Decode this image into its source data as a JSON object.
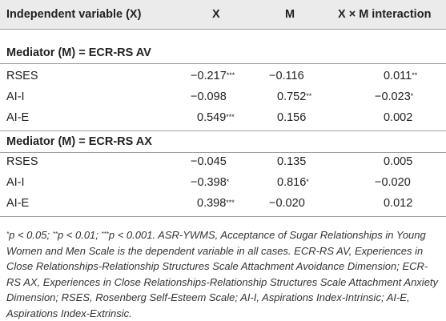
{
  "header": {
    "col_var": "Independent variable (X)",
    "col_x": "X",
    "col_m": "M",
    "col_xm": "X × M interaction"
  },
  "sections": [
    {
      "title": "Mediator (M) = ECR-RS AV",
      "rows": [
        {
          "label": "RSES",
          "x": "−0.217",
          "x_sig": "***",
          "m": "−0.116",
          "m_sig": "",
          "xm": "0.011",
          "xm_sig": "**"
        },
        {
          "label": "AI-I",
          "x": "−0.098",
          "x_sig": "",
          "m": "0.752",
          "m_sig": "**",
          "xm": "−0.023",
          "xm_sig": "*"
        },
        {
          "label": "AI-E",
          "x": "0.549",
          "x_sig": "***",
          "m": "0.156",
          "m_sig": "",
          "xm": "0.002",
          "xm_sig": ""
        }
      ]
    },
    {
      "title": "Mediator (M) = ECR-RS AX",
      "rows": [
        {
          "label": "RSES",
          "x": "−0.045",
          "x_sig": "",
          "m": "0.135",
          "m_sig": "",
          "xm": "0.005",
          "xm_sig": ""
        },
        {
          "label": "AI-I",
          "x": "−0.398",
          "x_sig": "*",
          "m": "0.816",
          "m_sig": "*",
          "xm": "−0.020",
          "xm_sig": ""
        },
        {
          "label": "AI-E",
          "x": "0.398",
          "x_sig": "***",
          "m": "−0.020",
          "m_sig": "",
          "xm": "0.012",
          "xm_sig": ""
        }
      ]
    }
  ],
  "footnote": {
    "sig1": "*",
    "p1": "p < 0.05; ",
    "sig2": "**",
    "p2": "p < 0.01; ",
    "sig3": "***",
    "rest": "p < 0.001. ASR-YWMS, Acceptance of Sugar Relationships in Young Women and Men Scale is the dependent variable in all cases. ECR-RS AV, Experiences in Close Relationships-Relationship Structures Scale Attachment Avoidance Dimension; ECR-RS AX, Experiences in Close Relationships-Relationship Structures Scale Attachment Anxiety Dimension; RSES, Rosenberg Self-Esteem Scale; AI-I, Aspirations Index-Intrinsic; AI-E, Aspirations Index-Extrinsic."
  }
}
